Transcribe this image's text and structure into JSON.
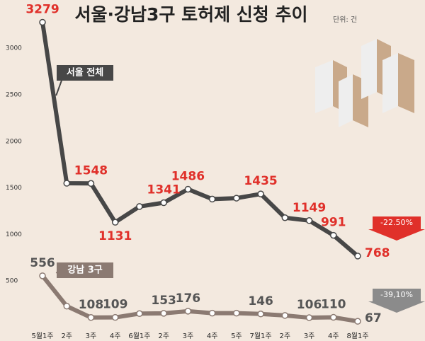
{
  "chart_data": {
    "type": "line",
    "title": "서울·강남3구 토허제 신청 추이",
    "unit": "단위: 건",
    "categories": [
      "5월1주",
      "2주",
      "3주",
      "4주",
      "6월1주",
      "2주",
      "3주",
      "4주",
      "5주",
      "7월1주",
      "2주",
      "3주",
      "4주",
      "8월1주"
    ],
    "series": [
      {
        "name": "서울 전체",
        "color": "#474747",
        "label_color": "#e0302a",
        "values": [
          3279,
          1550,
          1548,
          1131,
          1300,
          1341,
          1486,
          1380,
          1390,
          1435,
          1180,
          1149,
          991,
          768
        ],
        "labeled": [
          true,
          false,
          true,
          true,
          false,
          true,
          true,
          false,
          false,
          true,
          false,
          true,
          true,
          true
        ],
        "change": "-22.50%",
        "change_color": "#e0302a"
      },
      {
        "name": "강남 3구",
        "color": "#8b7a72",
        "label_color": "#555555",
        "values": [
          556,
          230,
          108,
          109,
          150,
          153,
          176,
          155,
          155,
          146,
          130,
          106,
          110,
          67
        ],
        "labeled": [
          true,
          false,
          true,
          true,
          false,
          true,
          true,
          false,
          false,
          true,
          false,
          true,
          true,
          true
        ],
        "change": "-39,10%",
        "change_color": "#8b8b8b"
      }
    ],
    "ylim": [
      0,
      3500
    ],
    "yticks": [
      500,
      1000,
      1500,
      2000,
      2500,
      3000
    ]
  }
}
